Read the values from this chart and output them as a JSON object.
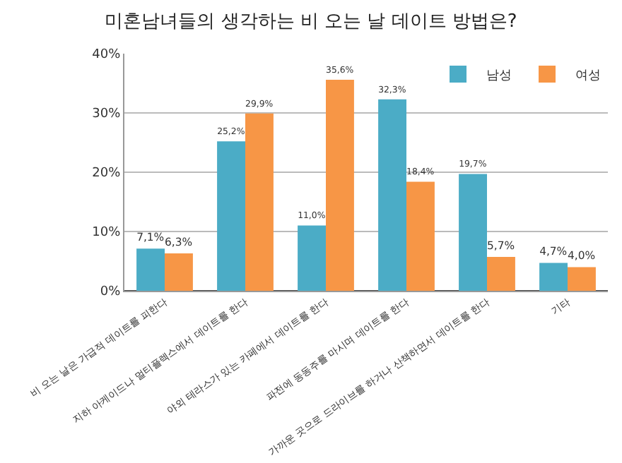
{
  "chart_data": {
    "type": "bar",
    "title": "미혼남녀들의 생각하는 비 오는 날 데이트 방법은?",
    "categories": [
      "비 오는 날은 가급적 데이트를 피한다",
      "지하 아케이드나 멀티플렉스에서 데이트를 한다",
      "야외 테라스가 있는 카페에서 데이트를 한다",
      "파전에 동동주를 마시며 데이트를 한다",
      "가까운 곳으로 드라이브를 하거나 산책하면서 데이트를 한다",
      "기타"
    ],
    "series": [
      {
        "name": "남성",
        "color": "#4bacc6",
        "values": [
          7.1,
          25.2,
          11.0,
          32.3,
          19.7,
          4.7
        ],
        "value_labels": [
          "7,1%",
          "25,2%",
          "11,0%",
          "32,3%",
          "19,7%",
          "4,7%"
        ]
      },
      {
        "name": "여성",
        "color": "#f79646",
        "values": [
          6.3,
          29.9,
          35.6,
          18.4,
          5.7,
          4.0
        ],
        "value_labels": [
          "6,3%",
          "29,9%",
          "35,6%",
          "18,4%",
          "5,7%",
          "4,0%"
        ]
      }
    ],
    "ylim": [
      0,
      40
    ],
    "yticks": [
      {
        "value": 0,
        "label": "0%"
      },
      {
        "value": 10,
        "label": "10%"
      },
      {
        "value": 20,
        "label": "20%"
      },
      {
        "value": 30,
        "label": "30%"
      },
      {
        "value": 40,
        "label": "40%"
      }
    ],
    "grid": "y",
    "legend": "top right"
  }
}
